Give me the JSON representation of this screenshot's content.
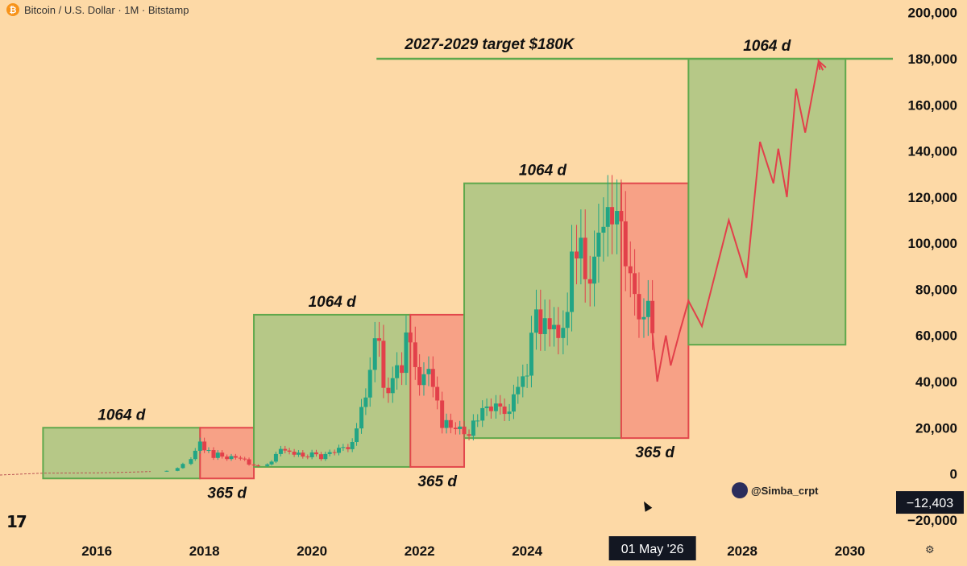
{
  "header": {
    "title": "Bitcoin / U.S. Dollar · 1M · Bitstamp",
    "icon": "bitcoin-icon",
    "icon_glyph": "₿"
  },
  "watermark": {
    "handle": "@Simba_crpt"
  },
  "crosshair": {
    "price_label": "−12,403",
    "date_label": "01 May '26"
  },
  "tv_logo": "17",
  "settings_glyph": "⚙",
  "colors": {
    "background": "#fdd9a6",
    "green_fill": "#b6c887",
    "green_stroke": "#5fa84c",
    "red_fill": "#f7a186",
    "red_stroke": "#e2484c",
    "up": "#22a585",
    "down": "#e2404a",
    "target_line": "#5fa84c",
    "projection": "#e2404a"
  },
  "chart_data": {
    "type": "candlestick",
    "title": "",
    "y_axis": {
      "ticks": [
        -20000,
        0,
        20000,
        40000,
        60000,
        80000,
        100000,
        120000,
        140000,
        160000,
        180000,
        200000
      ],
      "tick_labels": [
        "−20,000",
        "0",
        "20,000",
        "40,000",
        "60,000",
        "80,000",
        "100,000",
        "120,000",
        "140,000",
        "160,000",
        "180,000",
        "200,000"
      ],
      "range": [
        -26000,
        202000
      ]
    },
    "x_axis": {
      "ticks": [
        2016,
        2018,
        2020,
        2022,
        2024,
        2026,
        2028,
        2030
      ],
      "tick_labels": [
        "2016",
        "2018",
        "2020",
        "2022",
        "2024",
        "",
        "2028",
        "2030"
      ],
      "range": [
        2014.2,
        2030.8
      ]
    },
    "target": {
      "label": "2027-2029 target $180K",
      "value": 180000,
      "x_start": 2021.2
    },
    "cycle_boxes": [
      {
        "kind": "bull",
        "x0": 2015.0,
        "x1": 2017.92,
        "y0": -2000,
        "y1": 20000,
        "label": "1064 d"
      },
      {
        "kind": "bear",
        "x0": 2017.92,
        "x1": 2018.92,
        "y0": -2000,
        "y1": 20000,
        "label": "365 d"
      },
      {
        "kind": "bull",
        "x0": 2018.92,
        "x1": 2021.83,
        "y0": 3000,
        "y1": 69000,
        "label": "1064 d"
      },
      {
        "kind": "bear",
        "x0": 2021.83,
        "x1": 2022.83,
        "y0": 3000,
        "y1": 69000,
        "label": "365 d"
      },
      {
        "kind": "bull",
        "x0": 2022.83,
        "x1": 2025.75,
        "y0": 15500,
        "y1": 126000,
        "label": "1064 d"
      },
      {
        "kind": "bear",
        "x0": 2025.75,
        "x1": 2027.0,
        "y0": 15500,
        "y1": 126000,
        "label": "365 d"
      },
      {
        "kind": "bull",
        "x0": 2027.0,
        "x1": 2029.92,
        "y0": 56000,
        "y1": 180000,
        "label": "1064 d"
      }
    ],
    "price_path": [
      [
        2014.2,
        -500
      ],
      [
        2015.0,
        300
      ],
      [
        2016.0,
        420
      ],
      [
        2016.5,
        650
      ],
      [
        2017.0,
        1000
      ],
      [
        2017.3,
        1300
      ],
      [
        2017.5,
        2500
      ],
      [
        2017.6,
        4300
      ],
      [
        2017.75,
        6400
      ],
      [
        2017.83,
        10000
      ],
      [
        2017.92,
        14000
      ],
      [
        2018.0,
        10200
      ],
      [
        2018.08,
        10300
      ],
      [
        2018.17,
        6900
      ],
      [
        2018.25,
        9200
      ],
      [
        2018.33,
        7500
      ],
      [
        2018.42,
        6400
      ],
      [
        2018.5,
        7700
      ],
      [
        2018.58,
        7000
      ],
      [
        2018.67,
        6600
      ],
      [
        2018.75,
        6300
      ],
      [
        2018.83,
        4000
      ],
      [
        2018.92,
        3700
      ],
      [
        2019.0,
        3400
      ],
      [
        2019.17,
        4100
      ],
      [
        2019.25,
        5300
      ],
      [
        2019.33,
        8600
      ],
      [
        2019.42,
        10800
      ],
      [
        2019.5,
        10100
      ],
      [
        2019.58,
        9600
      ],
      [
        2019.67,
        8300
      ],
      [
        2019.75,
        9200
      ],
      [
        2019.83,
        7500
      ],
      [
        2019.92,
        7200
      ],
      [
        2020.0,
        9300
      ],
      [
        2020.08,
        8500
      ],
      [
        2020.17,
        6400
      ],
      [
        2020.25,
        8600
      ],
      [
        2020.33,
        9400
      ],
      [
        2020.42,
        9100
      ],
      [
        2020.5,
        11300
      ],
      [
        2020.58,
        11600
      ],
      [
        2020.67,
        10700
      ],
      [
        2020.75,
        13800
      ],
      [
        2020.83,
        19700
      ],
      [
        2020.92,
        29000
      ],
      [
        2021.0,
        33100
      ],
      [
        2021.08,
        45100
      ],
      [
        2021.17,
        58800
      ],
      [
        2021.25,
        57700
      ],
      [
        2021.33,
        37300
      ],
      [
        2021.42,
        35000
      ],
      [
        2021.5,
        41500
      ],
      [
        2021.58,
        47100
      ],
      [
        2021.67,
        43800
      ],
      [
        2021.75,
        61300
      ],
      [
        2021.83,
        57000
      ],
      [
        2021.92,
        46300
      ],
      [
        2022.0,
        38500
      ],
      [
        2022.08,
        43200
      ],
      [
        2022.17,
        45500
      ],
      [
        2022.25,
        37700
      ],
      [
        2022.33,
        31800
      ],
      [
        2022.42,
        19900
      ],
      [
        2022.5,
        23300
      ],
      [
        2022.58,
        20000
      ],
      [
        2022.67,
        19400
      ],
      [
        2022.75,
        20500
      ],
      [
        2022.83,
        17200
      ],
      [
        2022.92,
        16500
      ],
      [
        2023.0,
        23100
      ],
      [
        2023.08,
        23100
      ],
      [
        2023.17,
        28500
      ],
      [
        2023.25,
        29200
      ],
      [
        2023.33,
        27200
      ],
      [
        2023.42,
        30500
      ],
      [
        2023.5,
        29200
      ],
      [
        2023.58,
        26000
      ],
      [
        2023.67,
        27000
      ],
      [
        2023.75,
        34500
      ],
      [
        2023.83,
        37700
      ],
      [
        2023.92,
        42300
      ],
      [
        2024.0,
        42600
      ],
      [
        2024.08,
        61200
      ],
      [
        2024.17,
        71300
      ],
      [
        2024.25,
        60600
      ],
      [
        2024.33,
        67500
      ],
      [
        2024.42,
        62700
      ],
      [
        2024.5,
        64600
      ],
      [
        2024.58,
        58900
      ],
      [
        2024.67,
        63300
      ],
      [
        2024.75,
        70200
      ],
      [
        2024.83,
        96400
      ],
      [
        2024.92,
        93400
      ],
      [
        2025.0,
        102400
      ],
      [
        2025.08,
        84400
      ],
      [
        2025.17,
        82500
      ],
      [
        2025.25,
        94200
      ],
      [
        2025.33,
        104600
      ],
      [
        2025.42,
        107100
      ],
      [
        2025.5,
        115700
      ],
      [
        2025.58,
        108200
      ],
      [
        2025.67,
        114000
      ],
      [
        2025.75,
        109500
      ],
      [
        2025.83,
        90000
      ],
      [
        2025.92,
        87000
      ],
      [
        2026.0,
        78000
      ],
      [
        2026.08,
        67000
      ],
      [
        2026.17,
        68000
      ],
      [
        2026.25,
        75000
      ],
      [
        2026.33,
        61000
      ]
    ],
    "projection": [
      [
        2026.33,
        61000
      ],
      [
        2026.42,
        40000
      ],
      [
        2026.58,
        60000
      ],
      [
        2026.67,
        47000
      ],
      [
        2026.83,
        61000
      ],
      [
        2027.0,
        75000
      ],
      [
        2027.25,
        64000
      ],
      [
        2027.75,
        110000
      ],
      [
        2028.08,
        85000
      ],
      [
        2028.33,
        144000
      ],
      [
        2028.58,
        126000
      ],
      [
        2028.67,
        141000
      ],
      [
        2028.83,
        120000
      ],
      [
        2029.0,
        167000
      ],
      [
        2029.17,
        148000
      ],
      [
        2029.42,
        179000
      ],
      [
        2029.5,
        175000
      ]
    ]
  }
}
